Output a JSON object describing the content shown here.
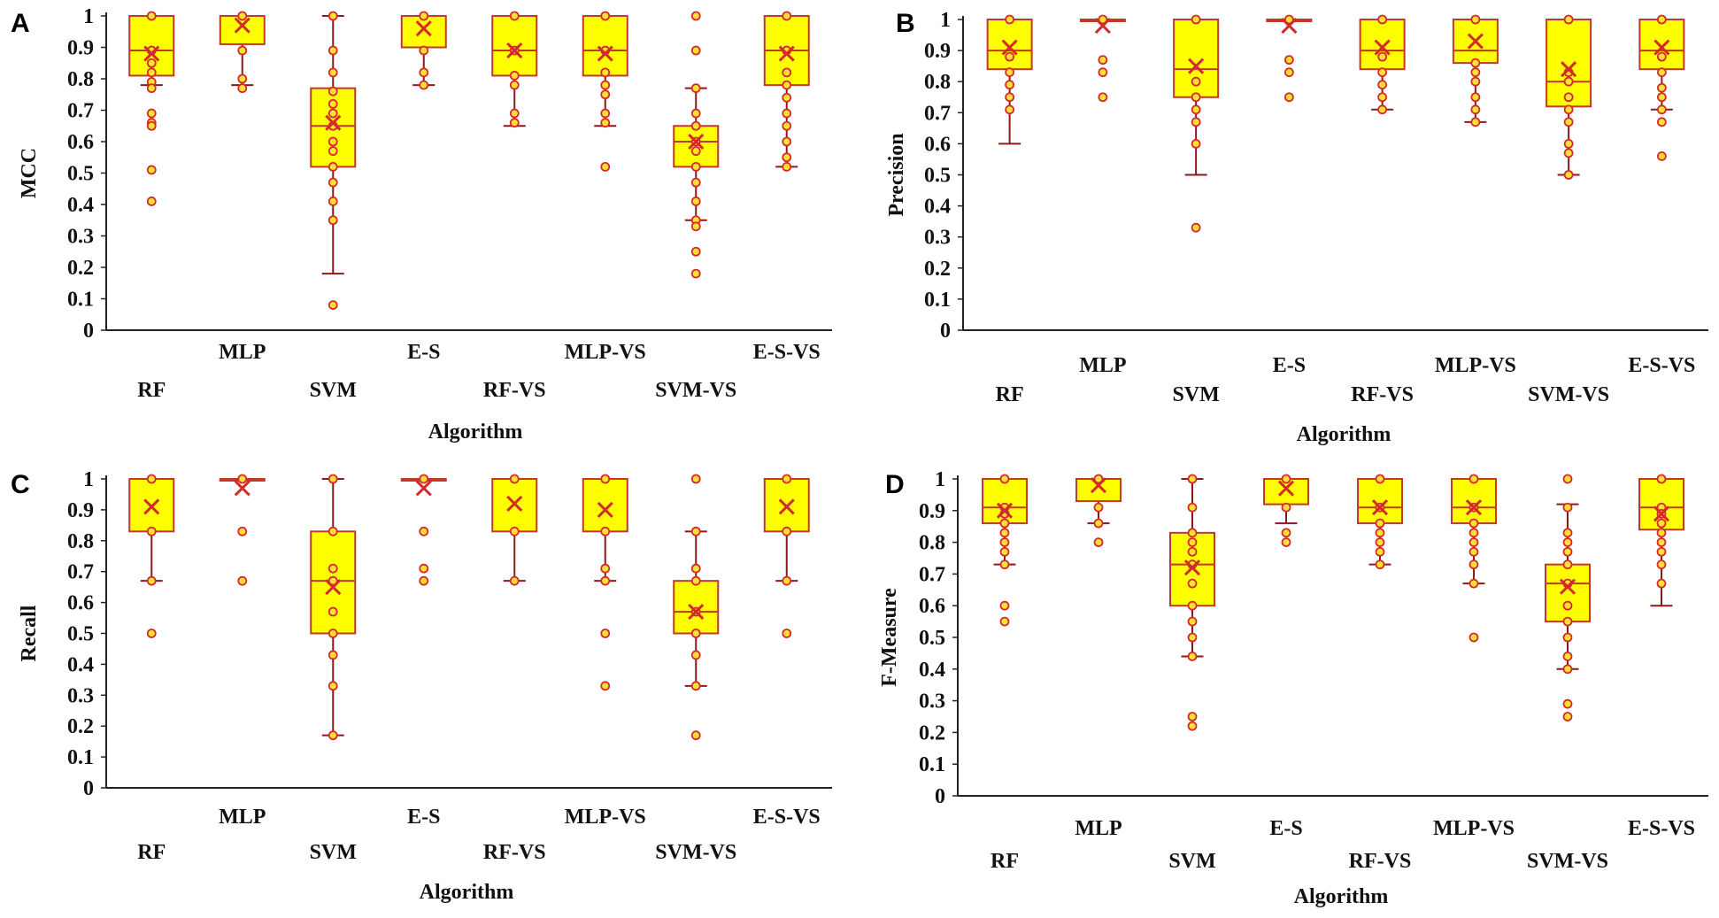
{
  "colors": {
    "box_fill": "#ffff00",
    "box_stroke": "#c0392b",
    "whisker": "#8b1a1a",
    "marker": "#d42a2a",
    "outlier_fill": "#ffe135",
    "axis": "#222222"
  },
  "chart_data": [
    {
      "panel": "A",
      "type": "box",
      "ylabel": "MCC",
      "xlabel": "Algorithm",
      "ylim": [
        0,
        1
      ],
      "yticks": [
        "0",
        "0.1",
        "0.2",
        "0.3",
        "0.4",
        "0.5",
        "0.6",
        "0.7",
        "0.8",
        "0.9",
        "1"
      ],
      "categories": [
        "RF",
        "MLP",
        "SVM",
        "E-S",
        "RF-VS",
        "MLP-VS",
        "SVM-VS",
        "E-S-VS"
      ],
      "boxes": [
        {
          "q1": 0.81,
          "median": 0.89,
          "q3": 1.0,
          "wlow": 0.78,
          "whigh": 1.0,
          "mean": 0.88,
          "points": [
            1.0,
            0.89,
            0.85,
            0.82,
            0.79,
            0.77,
            0.69,
            0.66,
            0.65,
            0.51,
            0.41
          ]
        },
        {
          "q1": 0.91,
          "median": 1.0,
          "q3": 1.0,
          "wlow": 0.78,
          "whigh": 1.0,
          "mean": 0.97,
          "points": [
            1.0,
            0.89,
            0.8,
            0.77
          ]
        },
        {
          "q1": 0.52,
          "median": 0.65,
          "q3": 0.77,
          "wlow": 0.18,
          "whigh": 1.0,
          "mean": 0.66,
          "points": [
            1.0,
            0.89,
            0.82,
            0.76,
            0.72,
            0.69,
            0.65,
            0.6,
            0.57,
            0.52,
            0.47,
            0.41,
            0.35,
            0.08
          ]
        },
        {
          "q1": 0.9,
          "median": 1.0,
          "q3": 1.0,
          "wlow": 0.78,
          "whigh": 1.0,
          "mean": 0.96,
          "points": [
            1.0,
            0.89,
            0.82,
            0.78
          ]
        },
        {
          "q1": 0.81,
          "median": 0.89,
          "q3": 1.0,
          "wlow": 0.65,
          "whigh": 1.0,
          "mean": 0.89,
          "points": [
            1.0,
            0.89,
            0.81,
            0.78,
            0.69,
            0.66
          ]
        },
        {
          "q1": 0.81,
          "median": 0.89,
          "q3": 1.0,
          "wlow": 0.65,
          "whigh": 1.0,
          "mean": 0.88,
          "points": [
            1.0,
            0.89,
            0.82,
            0.78,
            0.75,
            0.69,
            0.66,
            0.52
          ]
        },
        {
          "q1": 0.52,
          "median": 0.6,
          "q3": 0.65,
          "wlow": 0.35,
          "whigh": 0.77,
          "mean": 0.6,
          "points": [
            1.0,
            0.89,
            0.77,
            0.69,
            0.65,
            0.6,
            0.57,
            0.52,
            0.47,
            0.41,
            0.35,
            0.33,
            0.25,
            0.18
          ]
        },
        {
          "q1": 0.78,
          "median": 0.89,
          "q3": 1.0,
          "wlow": 0.52,
          "whigh": 1.0,
          "mean": 0.88,
          "points": [
            1.0,
            0.89,
            0.82,
            0.78,
            0.74,
            0.69,
            0.65,
            0.6,
            0.55,
            0.52
          ]
        }
      ]
    },
    {
      "panel": "B",
      "type": "box",
      "ylabel": "Precision",
      "xlabel": "Algorithm",
      "ylim": [
        0,
        1
      ],
      "yticks": [
        "0",
        "0.1",
        "0.2",
        "0.3",
        "0.4",
        "0.5",
        "0.6",
        "0.7",
        "0.8",
        "0.9",
        "1"
      ],
      "categories": [
        "RF",
        "MLP",
        "SVM",
        "E-S",
        "RF-VS",
        "MLP-VS",
        "SVM-VS",
        "E-S-VS"
      ],
      "boxes": [
        {
          "q1": 0.84,
          "median": 0.9,
          "q3": 1.0,
          "wlow": 0.6,
          "whigh": 1.0,
          "mean": 0.91,
          "points": [
            1.0,
            0.88,
            0.83,
            0.79,
            0.75,
            0.71
          ]
        },
        {
          "q1": 1.0,
          "median": 1.0,
          "q3": 1.0,
          "wlow": 1.0,
          "whigh": 1.0,
          "mean": 0.98,
          "points": [
            1.0,
            0.87,
            0.83,
            0.75
          ]
        },
        {
          "q1": 0.75,
          "median": 0.84,
          "q3": 1.0,
          "wlow": 0.5,
          "whigh": 1.0,
          "mean": 0.85,
          "points": [
            1.0,
            0.8,
            0.75,
            0.71,
            0.67,
            0.6,
            0.33
          ]
        },
        {
          "q1": 1.0,
          "median": 1.0,
          "q3": 1.0,
          "wlow": 1.0,
          "whigh": 1.0,
          "mean": 0.98,
          "points": [
            1.0,
            0.87,
            0.83,
            0.75
          ]
        },
        {
          "q1": 0.84,
          "median": 0.9,
          "q3": 1.0,
          "wlow": 0.71,
          "whigh": 1.0,
          "mean": 0.91,
          "points": [
            1.0,
            0.88,
            0.83,
            0.79,
            0.75,
            0.71
          ]
        },
        {
          "q1": 0.86,
          "median": 0.9,
          "q3": 1.0,
          "wlow": 0.67,
          "whigh": 1.0,
          "mean": 0.93,
          "points": [
            1.0,
            0.86,
            0.83,
            0.8,
            0.75,
            0.71,
            0.67
          ]
        },
        {
          "q1": 0.72,
          "median": 0.8,
          "q3": 1.0,
          "wlow": 0.5,
          "whigh": 1.0,
          "mean": 0.84,
          "points": [
            1.0,
            0.83,
            0.8,
            0.75,
            0.71,
            0.67,
            0.6,
            0.57,
            0.5
          ]
        },
        {
          "q1": 0.84,
          "median": 0.9,
          "q3": 1.0,
          "wlow": 0.71,
          "whigh": 1.0,
          "mean": 0.91,
          "points": [
            1.0,
            0.88,
            0.83,
            0.78,
            0.75,
            0.71,
            0.67,
            0.56
          ]
        }
      ]
    },
    {
      "panel": "C",
      "type": "box",
      "ylabel": "Recall",
      "xlabel": "Algorithm",
      "ylim": [
        0,
        1
      ],
      "yticks": [
        "0",
        "0.1",
        "0.2",
        "0.3",
        "0.4",
        "0.5",
        "0.6",
        "0.7",
        "0.8",
        "0.9",
        "1"
      ],
      "categories": [
        "RF",
        "MLP",
        "SVM",
        "E-S",
        "RF-VS",
        "MLP-VS",
        "SVM-VS",
        "E-S-VS"
      ],
      "boxes": [
        {
          "q1": 0.83,
          "median": 1.0,
          "q3": 1.0,
          "wlow": 0.67,
          "whigh": 1.0,
          "mean": 0.91,
          "points": [
            1.0,
            0.83,
            0.67,
            0.5
          ]
        },
        {
          "q1": 1.0,
          "median": 1.0,
          "q3": 1.0,
          "wlow": 1.0,
          "whigh": 1.0,
          "mean": 0.97,
          "points": [
            1.0,
            0.83,
            0.67
          ]
        },
        {
          "q1": 0.5,
          "median": 0.67,
          "q3": 0.83,
          "wlow": 0.17,
          "whigh": 1.0,
          "mean": 0.65,
          "points": [
            1.0,
            0.83,
            0.71,
            0.67,
            0.57,
            0.5,
            0.43,
            0.33,
            0.17
          ]
        },
        {
          "q1": 1.0,
          "median": 1.0,
          "q3": 1.0,
          "wlow": 1.0,
          "whigh": 1.0,
          "mean": 0.97,
          "points": [
            1.0,
            0.83,
            0.71,
            0.67
          ]
        },
        {
          "q1": 0.83,
          "median": 1.0,
          "q3": 1.0,
          "wlow": 0.67,
          "whigh": 1.0,
          "mean": 0.92,
          "points": [
            1.0,
            0.83,
            0.67
          ]
        },
        {
          "q1": 0.83,
          "median": 1.0,
          "q3": 1.0,
          "wlow": 0.67,
          "whigh": 1.0,
          "mean": 0.9,
          "points": [
            1.0,
            0.83,
            0.71,
            0.67,
            0.5,
            0.33
          ]
        },
        {
          "q1": 0.5,
          "median": 0.57,
          "q3": 0.67,
          "wlow": 0.33,
          "whigh": 0.83,
          "mean": 0.57,
          "points": [
            1.0,
            0.83,
            0.71,
            0.67,
            0.57,
            0.5,
            0.43,
            0.33,
            0.17
          ]
        },
        {
          "q1": 0.83,
          "median": 1.0,
          "q3": 1.0,
          "wlow": 0.67,
          "whigh": 1.0,
          "mean": 0.91,
          "points": [
            1.0,
            0.83,
            0.67,
            0.5
          ]
        }
      ]
    },
    {
      "panel": "D",
      "type": "box",
      "ylabel": "F-Measure",
      "xlabel": "Algorithm",
      "ylim": [
        0,
        1
      ],
      "yticks": [
        "0",
        "0.1",
        "0.2",
        "0.3",
        "0.4",
        "0.5",
        "0.6",
        "0.7",
        "0.8",
        "0.9",
        "1"
      ],
      "categories": [
        "RF",
        "MLP",
        "SVM",
        "E-S",
        "RF-VS",
        "MLP-VS",
        "SVM-VS",
        "E-S-VS"
      ],
      "boxes": [
        {
          "q1": 0.86,
          "median": 0.91,
          "q3": 1.0,
          "wlow": 0.73,
          "whigh": 1.0,
          "mean": 0.9,
          "points": [
            1.0,
            0.91,
            0.89,
            0.86,
            0.83,
            0.8,
            0.77,
            0.73,
            0.6,
            0.55
          ]
        },
        {
          "q1": 0.93,
          "median": 1.0,
          "q3": 1.0,
          "wlow": 0.86,
          "whigh": 1.0,
          "mean": 0.98,
          "points": [
            1.0,
            0.91,
            0.86,
            0.8
          ]
        },
        {
          "q1": 0.6,
          "median": 0.73,
          "q3": 0.83,
          "wlow": 0.44,
          "whigh": 1.0,
          "mean": 0.72,
          "points": [
            1.0,
            0.91,
            0.83,
            0.8,
            0.77,
            0.73,
            0.67,
            0.6,
            0.55,
            0.5,
            0.44,
            0.25,
            0.22
          ]
        },
        {
          "q1": 0.92,
          "median": 1.0,
          "q3": 1.0,
          "wlow": 0.86,
          "whigh": 1.0,
          "mean": 0.97,
          "points": [
            1.0,
            0.91,
            0.83,
            0.8
          ]
        },
        {
          "q1": 0.86,
          "median": 0.91,
          "q3": 1.0,
          "wlow": 0.73,
          "whigh": 1.0,
          "mean": 0.91,
          "points": [
            1.0,
            0.91,
            0.86,
            0.83,
            0.8,
            0.77,
            0.73
          ]
        },
        {
          "q1": 0.86,
          "median": 0.91,
          "q3": 1.0,
          "wlow": 0.67,
          "whigh": 1.0,
          "mean": 0.91,
          "points": [
            1.0,
            0.91,
            0.86,
            0.83,
            0.8,
            0.77,
            0.73,
            0.67,
            0.5
          ]
        },
        {
          "q1": 0.55,
          "median": 0.67,
          "q3": 0.73,
          "wlow": 0.4,
          "whigh": 0.92,
          "mean": 0.66,
          "points": [
            1.0,
            0.91,
            0.83,
            0.8,
            0.77,
            0.73,
            0.67,
            0.6,
            0.55,
            0.5,
            0.44,
            0.4,
            0.29,
            0.25
          ]
        },
        {
          "q1": 0.84,
          "median": 0.91,
          "q3": 1.0,
          "wlow": 0.6,
          "whigh": 1.0,
          "mean": 0.89,
          "points": [
            1.0,
            0.91,
            0.89,
            0.86,
            0.83,
            0.8,
            0.77,
            0.73,
            0.67
          ]
        }
      ]
    }
  ]
}
